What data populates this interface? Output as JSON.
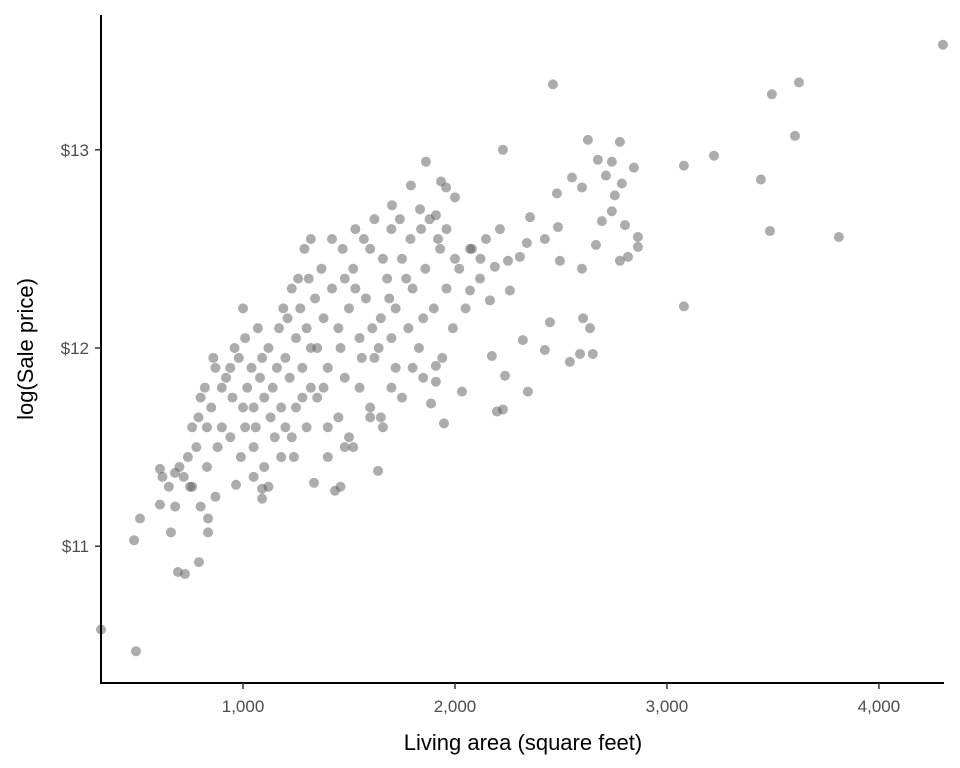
{
  "chart_data": {
    "type": "scatter",
    "title": "",
    "xlabel": "Living area (square feet)",
    "ylabel": "log(Sale price)",
    "xlim": [
      330,
      4307
    ],
    "ylim": [
      10.31,
      13.68
    ],
    "grid": false,
    "x_ticks": [
      {
        "value": 1000,
        "label": "1,000"
      },
      {
        "value": 2000,
        "label": "2,000"
      },
      {
        "value": 3000,
        "label": "3,000"
      },
      {
        "value": 4000,
        "label": "4,000"
      }
    ],
    "y_ticks": [
      {
        "value": 11,
        "label": "$11"
      },
      {
        "value": 12,
        "label": "$12"
      },
      {
        "value": 13,
        "label": "$13"
      }
    ],
    "point_color": "#595959",
    "point_opacity": 0.5,
    "points": [
      [
        330,
        10.58
      ],
      [
        495,
        10.47
      ],
      [
        4302,
        13.53
      ],
      [
        2462,
        13.33
      ],
      [
        3495,
        13.28
      ],
      [
        3623,
        13.34
      ],
      [
        3604,
        13.07
      ],
      [
        3443,
        12.85
      ],
      [
        3486,
        12.59
      ],
      [
        3811,
        12.56
      ],
      [
        3080,
        12.21
      ],
      [
        3080,
        12.92
      ],
      [
        3222,
        12.97
      ],
      [
        2226,
        13.0
      ],
      [
        1863,
        12.94
      ],
      [
        514,
        11.14
      ],
      [
        486,
        11.03
      ],
      [
        608,
        11.21
      ],
      [
        660,
        11.07
      ],
      [
        693,
        10.87
      ],
      [
        726,
        10.86
      ],
      [
        792,
        10.92
      ],
      [
        835,
        11.07
      ],
      [
        835,
        11.14
      ],
      [
        608,
        11.39
      ],
      [
        679,
        11.37
      ],
      [
        750,
        11.3
      ],
      [
        967,
        11.31
      ],
      [
        1090,
        11.29
      ],
      [
        1090,
        11.24
      ],
      [
        1434,
        11.28
      ],
      [
        1637,
        11.38
      ],
      [
        1335,
        11.32
      ],
      [
        2590,
        11.97
      ],
      [
        2650,
        11.97
      ],
      [
        2542,
        11.93
      ],
      [
        2424,
        11.99
      ],
      [
        2344,
        11.78
      ],
      [
        2320,
        12.04
      ],
      [
        2448,
        12.13
      ],
      [
        2604,
        12.15
      ],
      [
        2637,
        12.1
      ],
      [
        2198,
        11.68
      ],
      [
        2226,
        11.69
      ],
      [
        2236,
        11.86
      ],
      [
        2033,
        11.78
      ],
      [
        1948,
        11.62
      ],
      [
        1887,
        11.72
      ],
      [
        2174,
        11.96
      ],
      [
        1910,
        11.83
      ],
      [
        1910,
        11.91
      ],
      [
        2627,
        13.05
      ],
      [
        2778,
        13.04
      ],
      [
        2740,
        12.94
      ],
      [
        2674,
        12.95
      ],
      [
        2844,
        12.91
      ],
      [
        2712,
        12.87
      ],
      [
        2552,
        12.86
      ],
      [
        2481,
        12.78
      ],
      [
        2599,
        12.81
      ],
      [
        2787,
        12.83
      ],
      [
        2754,
        12.77
      ],
      [
        2740,
        12.69
      ],
      [
        2802,
        12.62
      ],
      [
        2693,
        12.64
      ],
      [
        2863,
        12.56
      ],
      [
        2863,
        12.51
      ],
      [
        2816,
        12.46
      ],
      [
        2778,
        12.44
      ],
      [
        2665,
        12.52
      ],
      [
        2599,
        12.4
      ],
      [
        2495,
        12.44
      ],
      [
        2486,
        12.61
      ],
      [
        2424,
        12.55
      ],
      [
        2354,
        12.66
      ],
      [
        2339,
        12.53
      ],
      [
        2306,
        12.46
      ],
      [
        2250,
        12.44
      ],
      [
        2188,
        12.41
      ],
      [
        2118,
        12.35
      ],
      [
        2165,
        12.24
      ],
      [
        2071,
        12.29
      ],
      [
        2259,
        12.29
      ],
      [
        2146,
        12.55
      ],
      [
        2071,
        12.5
      ],
      [
        2212,
        12.6
      ],
      [
        1934,
        12.84
      ],
      [
        1792,
        12.82
      ],
      [
        1958,
        12.81
      ],
      [
        2000,
        12.76
      ],
      [
        1835,
        12.7
      ],
      [
        1703,
        12.72
      ],
      [
        1910,
        12.67
      ],
      [
        800,
        11.75
      ],
      [
        820,
        11.8
      ],
      [
        850,
        11.7
      ],
      [
        870,
        11.9
      ],
      [
        900,
        11.6
      ],
      [
        920,
        11.85
      ],
      [
        950,
        11.75
      ],
      [
        980,
        11.95
      ],
      [
        1000,
        11.7
      ],
      [
        1020,
        11.8
      ],
      [
        1040,
        11.9
      ],
      [
        1060,
        11.6
      ],
      [
        1080,
        11.85
      ],
      [
        1100,
        11.75
      ],
      [
        1120,
        12.0
      ],
      [
        1140,
        11.8
      ],
      [
        1160,
        11.9
      ],
      [
        1180,
        11.7
      ],
      [
        1200,
        11.95
      ],
      [
        1220,
        11.85
      ],
      [
        1250,
        12.05
      ],
      [
        1280,
        11.9
      ],
      [
        1300,
        12.1
      ],
      [
        830,
        11.6
      ],
      [
        880,
        11.5
      ],
      [
        940,
        11.55
      ],
      [
        990,
        11.45
      ],
      [
        1050,
        11.5
      ],
      [
        1100,
        11.4
      ],
      [
        1150,
        11.55
      ],
      [
        1200,
        11.6
      ],
      [
        1250,
        11.7
      ],
      [
        960,
        12.0
      ],
      [
        1010,
        12.05
      ],
      [
        1070,
        12.1
      ],
      [
        1000,
        12.2
      ],
      [
        860,
        11.95
      ],
      [
        790,
        11.65
      ],
      [
        900,
        11.8
      ],
      [
        1050,
        11.7
      ],
      [
        1130,
        11.65
      ],
      [
        1230,
        11.55
      ],
      [
        1280,
        11.75
      ],
      [
        1010,
        11.6
      ],
      [
        940,
        11.9
      ],
      [
        1090,
        11.95
      ],
      [
        1170,
        12.1
      ],
      [
        1210,
        12.15
      ],
      [
        1270,
        12.2
      ],
      [
        1180,
        11.45
      ],
      [
        830,
        11.4
      ],
      [
        1300,
        11.6
      ],
      [
        1320,
        11.8
      ],
      [
        1050,
        11.35
      ],
      [
        1120,
        11.3
      ],
      [
        1240,
        11.45
      ],
      [
        870,
        11.25
      ],
      [
        780,
        11.5
      ],
      [
        760,
        11.6
      ],
      [
        740,
        11.45
      ],
      [
        720,
        11.35
      ],
      [
        700,
        11.4
      ],
      [
        680,
        11.2
      ],
      [
        650,
        11.3
      ],
      [
        620,
        11.35
      ],
      [
        760,
        11.3
      ],
      [
        800,
        11.2
      ],
      [
        1350,
        12.0
      ],
      [
        1380,
        12.15
      ],
      [
        1400,
        11.9
      ],
      [
        1420,
        12.3
      ],
      [
        1450,
        12.1
      ],
      [
        1480,
        11.85
      ],
      [
        1500,
        12.2
      ],
      [
        1520,
        12.4
      ],
      [
        1550,
        12.05
      ],
      [
        1580,
        12.25
      ],
      [
        1600,
        12.5
      ],
      [
        1620,
        11.95
      ],
      [
        1650,
        12.15
      ],
      [
        1680,
        12.35
      ],
      [
        1700,
        12.05
      ],
      [
        1720,
        12.2
      ],
      [
        1750,
        12.45
      ],
      [
        1780,
        12.1
      ],
      [
        1800,
        12.3
      ],
      [
        1830,
        12.0
      ],
      [
        1860,
        12.4
      ],
      [
        1900,
        12.2
      ],
      [
        1930,
        12.5
      ],
      [
        1960,
        12.3
      ],
      [
        1990,
        12.1
      ],
      [
        2020,
        12.4
      ],
      [
        2050,
        12.2
      ],
      [
        1350,
        11.75
      ],
      [
        1400,
        11.6
      ],
      [
        1450,
        11.65
      ],
      [
        1500,
        11.55
      ],
      [
        1550,
        11.8
      ],
      [
        1600,
        11.7
      ],
      [
        1650,
        11.65
      ],
      [
        1700,
        11.8
      ],
      [
        1750,
        11.75
      ],
      [
        1800,
        11.9
      ],
      [
        1850,
        11.85
      ],
      [
        1370,
        12.4
      ],
      [
        1420,
        12.55
      ],
      [
        1470,
        12.5
      ],
      [
        1530,
        12.6
      ],
      [
        1570,
        12.55
      ],
      [
        1620,
        12.65
      ],
      [
        1660,
        12.45
      ],
      [
        1700,
        12.6
      ],
      [
        1740,
        12.65
      ],
      [
        1790,
        12.55
      ],
      [
        1840,
        12.6
      ],
      [
        1880,
        12.65
      ],
      [
        1920,
        12.55
      ],
      [
        1960,
        12.6
      ],
      [
        1310,
        12.35
      ],
      [
        1340,
        12.25
      ],
      [
        1260,
        12.35
      ],
      [
        1290,
        12.5
      ],
      [
        1320,
        12.55
      ],
      [
        1480,
        12.35
      ],
      [
        1560,
        11.95
      ],
      [
        1640,
        12.0
      ],
      [
        1720,
        11.9
      ],
      [
        1460,
        12.0
      ],
      [
        1530,
        12.3
      ],
      [
        1610,
        12.1
      ],
      [
        1690,
        12.25
      ],
      [
        1770,
        12.35
      ],
      [
        1850,
        12.15
      ],
      [
        1940,
        11.95
      ],
      [
        2000,
        12.45
      ],
      [
        2080,
        12.5
      ],
      [
        2120,
        12.45
      ],
      [
        1400,
        11.45
      ],
      [
        1460,
        11.3
      ],
      [
        1520,
        11.5
      ],
      [
        1600,
        11.65
      ],
      [
        1480,
        11.5
      ],
      [
        1660,
        11.6
      ],
      [
        1230,
        12.3
      ],
      [
        1190,
        12.2
      ],
      [
        1320,
        12.0
      ],
      [
        1380,
        11.8
      ]
    ]
  }
}
